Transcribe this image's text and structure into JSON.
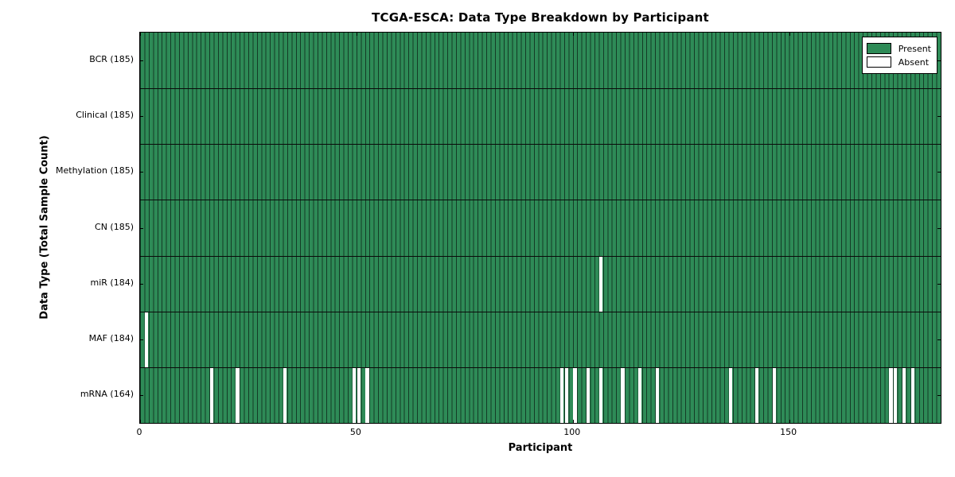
{
  "chart_data": {
    "type": "heatmap",
    "title": "TCGA-ESCA: Data Type Breakdown by Participant",
    "xlabel": "Participant",
    "ylabel": "Data Type (Total Sample Count)",
    "x_range": [
      0,
      185
    ],
    "x_ticks": [
      0,
      50,
      100,
      150
    ],
    "n_participants": 185,
    "grid": "row-separator-lines",
    "legend": {
      "position": "upper-right",
      "present": "Present",
      "absent": "Absent"
    },
    "colors": {
      "present": "#2e8b57",
      "absent": "#ffffff",
      "bar_edge": "#143b26",
      "frame": "#000000"
    },
    "rows": [
      {
        "label": "BCR (185)",
        "data_type": "BCR",
        "total_samples": 185,
        "absent_participants": []
      },
      {
        "label": "Clinical (185)",
        "data_type": "Clinical",
        "total_samples": 185,
        "absent_participants": []
      },
      {
        "label": "Methylation (185)",
        "data_type": "Methylation",
        "total_samples": 185,
        "absent_participants": []
      },
      {
        "label": "CN (185)",
        "data_type": "CN",
        "total_samples": 185,
        "absent_participants": []
      },
      {
        "label": "miR (184)",
        "data_type": "miR",
        "total_samples": 184,
        "absent_participants": [
          106
        ]
      },
      {
        "label": "MAF (184)",
        "data_type": "MAF",
        "total_samples": 184,
        "absent_participants": [
          1
        ]
      },
      {
        "label": "mRNA (164)",
        "data_type": "mRNA",
        "total_samples": 164,
        "absent_participants": [
          16,
          22,
          33,
          49,
          50,
          52,
          97,
          98,
          100,
          103,
          106,
          111,
          115,
          119,
          136,
          142,
          146,
          173,
          174,
          176,
          178
        ]
      }
    ]
  }
}
